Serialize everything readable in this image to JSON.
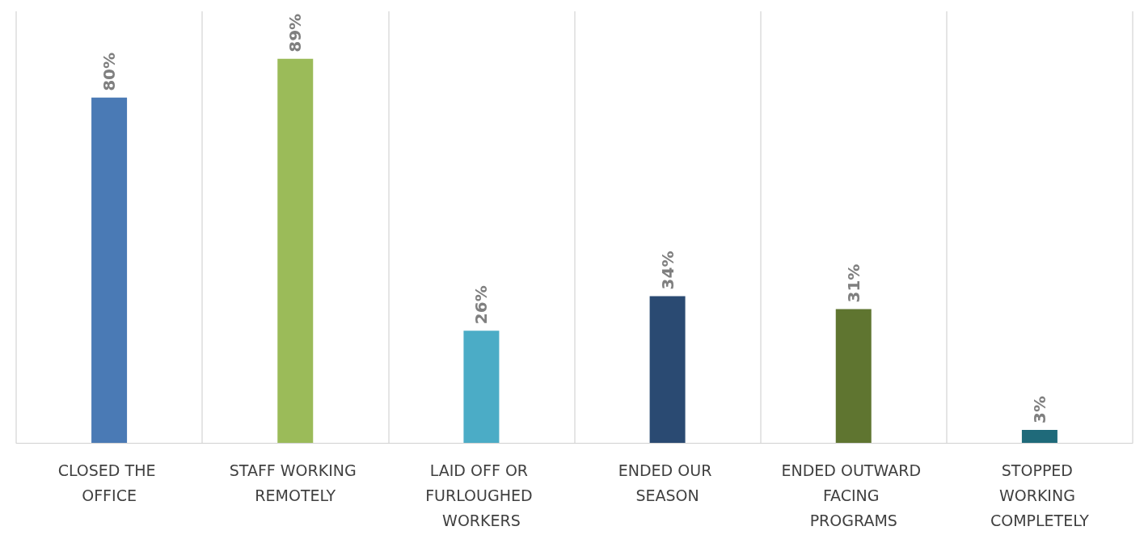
{
  "chart_data": {
    "type": "bar",
    "categories": [
      "CLOSED THE OFFICE",
      "STAFF WORKING REMOTELY",
      "LAID OFF OR FURLOUGHED WORKERS",
      "ENDED OUR SEASON",
      "ENDED OUTWARD FACING PROGRAMS",
      "STOPPED WORKING COMPLETELY"
    ],
    "values": [
      80,
      89,
      26,
      34,
      31,
      3
    ],
    "value_labels": [
      "80%",
      "89%",
      "26%",
      "34%",
      "31%",
      "3%"
    ],
    "colors": [
      "#4a7ab5",
      "#9bbb59",
      "#4bacc6",
      "#2a4a72",
      "#5f7530",
      "#1f6a7a"
    ],
    "grid": "x"
  }
}
